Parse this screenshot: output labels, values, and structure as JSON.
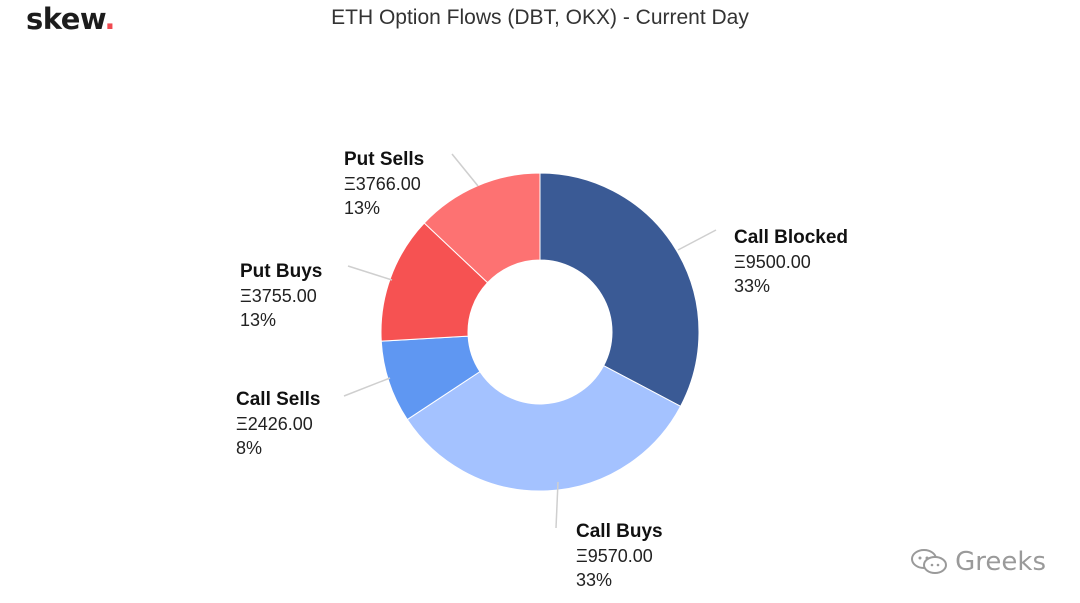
{
  "brand": {
    "name": "skew",
    "dot": "."
  },
  "watermark": {
    "text": "Greeks"
  },
  "chart_data": {
    "type": "pie",
    "title": "ETH Option Flows (DBT, OKX) - Current Day",
    "currency_symbol": "Ξ",
    "slices": [
      {
        "name": "Call Blocked",
        "value": 9500.0,
        "value_label": "Ξ9500.00",
        "percent_label": "33%",
        "color": "#3a5a95"
      },
      {
        "name": "Call Buys",
        "value": 9570.0,
        "value_label": "Ξ9570.00",
        "percent_label": "33%",
        "color": "#a4c2ff"
      },
      {
        "name": "Call Sells",
        "value": 2426.0,
        "value_label": "Ξ2426.00",
        "percent_label": "8%",
        "color": "#5f97f2"
      },
      {
        "name": "Put Buys",
        "value": 3755.0,
        "value_label": "Ξ3755.00",
        "percent_label": "13%",
        "color": "#f65252"
      },
      {
        "name": "Put Sells",
        "value": 3766.0,
        "value_label": "Ξ3766.00",
        "percent_label": "13%",
        "color": "#fd7272"
      }
    ]
  }
}
